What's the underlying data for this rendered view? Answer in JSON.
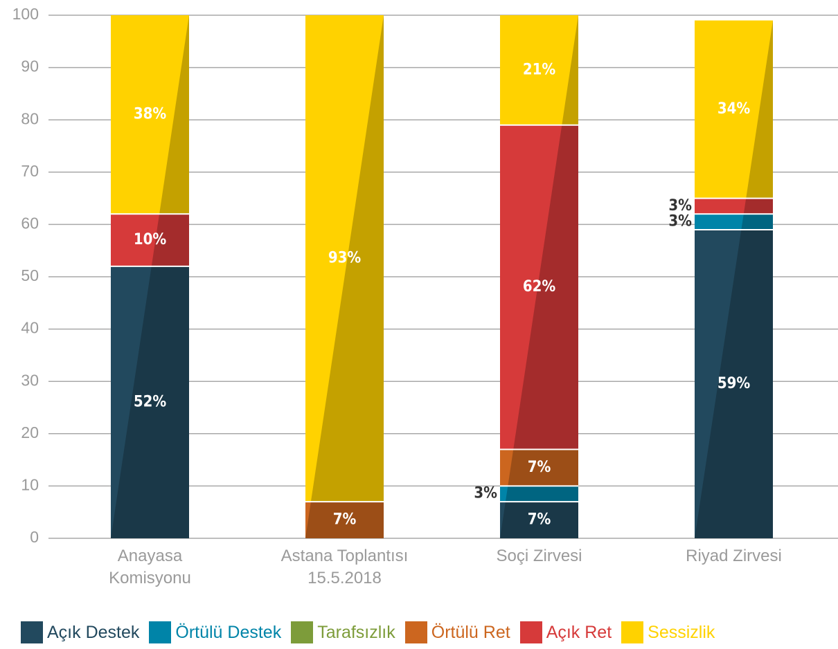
{
  "chart_data": {
    "type": "stacked-bar",
    "categories": [
      "Anayasa\nKomisyonu",
      "Astana Toplantısı\n15.5.2018",
      "Soçi Zirvesi",
      "Riyad Zirvesi"
    ],
    "series": [
      {
        "name": "Açık Destek",
        "color": "#22495e",
        "values": [
          52,
          null,
          7,
          59
        ],
        "value_labels": [
          "52%",
          null,
          "7%",
          "59%"
        ]
      },
      {
        "name": "Örtülü Destek",
        "color": "#0084a8",
        "values": [
          null,
          null,
          3,
          3
        ],
        "value_labels": [
          null,
          null,
          "3%",
          "3%"
        ]
      },
      {
        "name": "Tarafsızlık",
        "color": "#7d9c3a",
        "values": [
          null,
          null,
          null,
          null
        ],
        "value_labels": [
          null,
          null,
          null,
          null
        ]
      },
      {
        "name": "Örtülü Ret",
        "color": "#cc661f",
        "values": [
          null,
          7,
          7,
          null
        ],
        "value_labels": [
          null,
          "7%",
          "7%",
          null
        ]
      },
      {
        "name": "Açık Ret",
        "color": "#d63a3a",
        "values": [
          10,
          null,
          62,
          3
        ],
        "value_labels": [
          "10%",
          null,
          "62%",
          "3%"
        ]
      },
      {
        "name": "Sessizlik",
        "color": "#ffd200",
        "values": [
          38,
          93,
          21,
          34
        ],
        "value_labels": [
          "38%",
          "93%",
          "21%",
          "34%"
        ]
      }
    ],
    "ylim": [
      0,
      100
    ],
    "yticks": [
      0,
      10,
      20,
      30,
      40,
      50,
      60,
      70,
      80,
      90,
      100
    ],
    "grid": true
  }
}
